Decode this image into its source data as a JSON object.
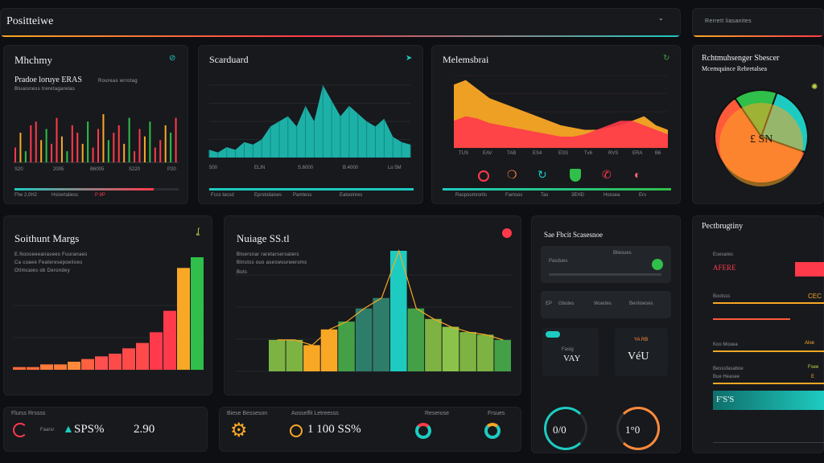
{
  "header": {
    "title": "Positteiwe",
    "right_label": "Rerrett liasanites",
    "chevron": "chevron-down-icon"
  },
  "panels": {
    "p1": {
      "title": "Mhchmy",
      "sub1": "Pradoe loruye ERAS",
      "sub2": "Roureas wrrotag",
      "sub3": "Bluaisness treretagarelas",
      "ticks": [
        "S20",
        "2005",
        "B6005",
        "S220",
        "P20"
      ],
      "foot": [
        "Fhe 2,0H2",
        "Hsirertaliess",
        "P 8P"
      ]
    },
    "p2": {
      "title": "Scarduard",
      "ticks": [
        "500",
        "ELIN",
        "S.6000",
        "B.4000",
        "Lo 5M"
      ],
      "foot": [
        "Fcss tacsd",
        "Eprstoliaises",
        "Pamtess",
        "Ealooinres"
      ]
    },
    "p3": {
      "title": "Melemsbrai",
      "ticks": [
        "TUS",
        "EAV",
        "TAB",
        "ES4",
        "ESS",
        "Tv6",
        "RVS",
        "ERA",
        "B6"
      ],
      "foot": [
        "Raspoomrorits",
        "Famsos",
        "Tas",
        "3EHD",
        "Hossea",
        "Ers"
      ]
    },
    "p4": {
      "title": "Rchtmuhsenger Sbescer",
      "sub": "Mcemquince Rebretalsea",
      "center": "£ SN"
    },
    "p5": {
      "title": "Soithunt Margs",
      "sub1": "E.Nooseeeanasees Fuuranaes",
      "sub2": "Ca coaee Feateresepoelioes",
      "sub3": "Otlmcaies ob  Derondey"
    },
    "p6": {
      "title": "Nuiage SS.tl",
      "sub1": "Bloersnar raretarseroaters",
      "sub2": "Btnstss ouo aseswourweroms",
      "sub3": "Bots"
    },
    "p7": {
      "title": "Sae Fbcit Scasesnoe",
      "row1": [
        "Pasdues",
        "Bliesues"
      ],
      "row2": [
        "EP",
        "Gbutes",
        "Wuedes",
        "Bentioeses"
      ],
      "card1": [
        "Fasig",
        "VAY"
      ],
      "card2": [
        "YA RB",
        "VéU"
      ],
      "gauges": [
        "0/0",
        "1°0"
      ]
    },
    "p8": {
      "title": "Pectbrugtiny",
      "rows": [
        {
          "label": "Esesares",
          "value": "AFERE"
        },
        {
          "label": "Bootsss",
          "value": "CEC"
        },
        {
          "label": "Koo Mouea",
          "value": "Aloe"
        },
        {
          "label": "Besssfasaboe",
          "value": "Fsee"
        },
        {
          "label": "Bue Heasee",
          "value": "E"
        }
      ],
      "big": "F'S'S"
    },
    "b1": {
      "label": "Flurss Rrssss",
      "val1": "SPS%",
      "val2": "2.90",
      "small": "Faarsr"
    },
    "b2": {
      "label": "Biese Besseson",
      "val": "1 100 SS%",
      "mid": "Aosselfit Letreesss",
      "right1": "Reserose",
      "right2": "Frsues"
    }
  },
  "chart_data": [
    {
      "type": "bar",
      "title": "Mhchmy",
      "values": [
        4,
        8,
        3,
        10,
        11,
        6,
        9,
        5,
        12,
        7,
        3,
        10,
        8,
        5,
        11,
        4,
        9,
        13,
        6,
        8,
        10,
        5,
        12,
        3,
        9,
        7,
        11,
        4,
        6,
        10,
        8,
        12
      ]
    },
    {
      "type": "area",
      "title": "Scarduard",
      "values": [
        3,
        2,
        4,
        3,
        6,
        5,
        7,
        12,
        14,
        16,
        12,
        20,
        14,
        28,
        22,
        16,
        20,
        17,
        14,
        12,
        15,
        8,
        6,
        5
      ]
    },
    {
      "type": "area",
      "title": "Melemsbrai",
      "series": [
        {
          "values": [
            28,
            30,
            26,
            22,
            20,
            18,
            16,
            14,
            12,
            10,
            9,
            8,
            8,
            9,
            10,
            12,
            14,
            10,
            8
          ]
        },
        {
          "values": [
            12,
            14,
            13,
            11,
            10,
            9,
            8,
            7,
            6,
            5,
            5,
            6,
            8,
            10,
            12,
            12,
            10,
            8,
            6
          ]
        }
      ]
    },
    {
      "type": "pie",
      "title": "Rchtmuhsenger Sbescer",
      "values": [
        15,
        25,
        60
      ],
      "colors": [
        "#2fbf4a",
        "#1ecbc0",
        "#ff5a3a"
      ]
    },
    {
      "type": "bar",
      "title": "Soithunt Margs",
      "values": [
        1,
        1,
        2,
        2,
        3,
        4,
        5,
        6,
        8,
        10,
        14,
        22,
        38,
        42
      ],
      "colors": [
        "#ff6a3a",
        "#ff6a3a",
        "#ff7a3a",
        "#ff7a3a",
        "#ff8a3a",
        "#ff6040",
        "#ff5050",
        "#ff4a4a",
        "#ff4a4a",
        "#ff4a4a",
        "#ff3a4a",
        "#ff3a4a",
        "#f9a825",
        "#2fbf4a"
      ]
    },
    {
      "type": "bar",
      "title": "Nuiage SS.tl",
      "values": [
        12,
        12,
        10,
        16,
        19,
        24,
        28,
        46,
        24,
        20,
        17,
        15,
        14,
        12
      ],
      "colors": [
        "#7cb342",
        "#7cb342",
        "#f9a825",
        "#f9a825",
        "#43a047",
        "#2e7d6b",
        "#2e7d6b",
        "#1ecbc0",
        "#43a047",
        "#7cb342",
        "#8bc34a",
        "#7cb342",
        "#7cb342",
        "#43a047"
      ]
    }
  ]
}
